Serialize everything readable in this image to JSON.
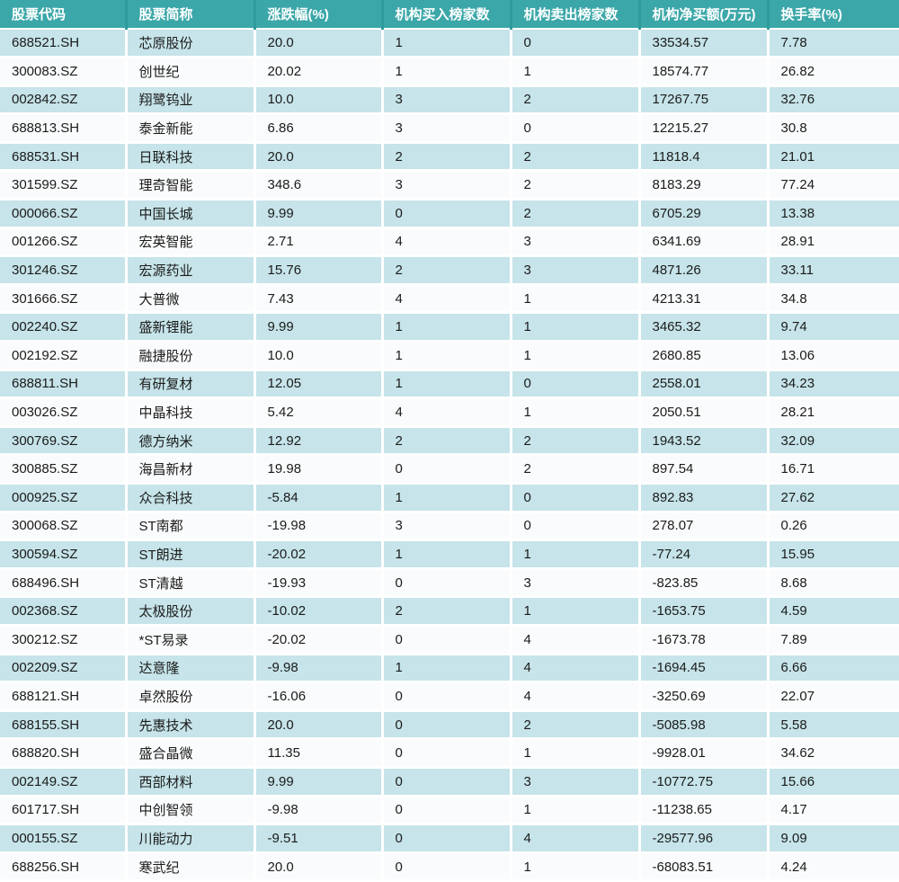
{
  "chart_data": {
    "type": "table",
    "columns": [
      "股票代码",
      "股票简称",
      "涨跌幅(%)",
      "机构买入榜家数",
      "机构卖出榜家数",
      "机构净买额(万元)",
      "换手率(%)"
    ],
    "column_keys": [
      "stock-code",
      "stock-name",
      "change-pct",
      "inst-buy-list-count",
      "inst-sell-list-count",
      "inst-net-buy-amount-wan",
      "turnover-rate-pct"
    ],
    "rows": [
      [
        "688521.SH",
        "芯原股份",
        "20.0",
        "1",
        "0",
        "33534.57",
        "7.78"
      ],
      [
        "300083.SZ",
        "创世纪",
        "20.02",
        "1",
        "1",
        "18574.77",
        "26.82"
      ],
      [
        "002842.SZ",
        "翔鹭钨业",
        "10.0",
        "3",
        "2",
        "17267.75",
        "32.76"
      ],
      [
        "688813.SH",
        "泰金新能",
        "6.86",
        "3",
        "0",
        "12215.27",
        "30.8"
      ],
      [
        "688531.SH",
        "日联科技",
        "20.0",
        "2",
        "2",
        "11818.4",
        "21.01"
      ],
      [
        "301599.SZ",
        "理奇智能",
        "348.6",
        "3",
        "2",
        "8183.29",
        "77.24"
      ],
      [
        "000066.SZ",
        "中国长城",
        "9.99",
        "0",
        "2",
        "6705.29",
        "13.38"
      ],
      [
        "001266.SZ",
        "宏英智能",
        "2.71",
        "4",
        "3",
        "6341.69",
        "28.91"
      ],
      [
        "301246.SZ",
        "宏源药业",
        "15.76",
        "2",
        "3",
        "4871.26",
        "33.11"
      ],
      [
        "301666.SZ",
        "大普微",
        "7.43",
        "4",
        "1",
        "4213.31",
        "34.8"
      ],
      [
        "002240.SZ",
        "盛新锂能",
        "9.99",
        "1",
        "1",
        "3465.32",
        "9.74"
      ],
      [
        "002192.SZ",
        "融捷股份",
        "10.0",
        "1",
        "1",
        "2680.85",
        "13.06"
      ],
      [
        "688811.SH",
        "有研复材",
        "12.05",
        "1",
        "0",
        "2558.01",
        "34.23"
      ],
      [
        "003026.SZ",
        "中晶科技",
        "5.42",
        "4",
        "1",
        "2050.51",
        "28.21"
      ],
      [
        "300769.SZ",
        "德方纳米",
        "12.92",
        "2",
        "2",
        "1943.52",
        "32.09"
      ],
      [
        "300885.SZ",
        "海昌新材",
        "19.98",
        "0",
        "2",
        "897.54",
        "16.71"
      ],
      [
        "000925.SZ",
        "众合科技",
        "-5.84",
        "1",
        "0",
        "892.83",
        "27.62"
      ],
      [
        "300068.SZ",
        "ST南都",
        "-19.98",
        "3",
        "0",
        "278.07",
        "0.26"
      ],
      [
        "300594.SZ",
        "ST朗进",
        "-20.02",
        "1",
        "1",
        "-77.24",
        "15.95"
      ],
      [
        "688496.SH",
        "ST清越",
        "-19.93",
        "0",
        "3",
        "-823.85",
        "8.68"
      ],
      [
        "002368.SZ",
        "太极股份",
        "-10.02",
        "2",
        "1",
        "-1653.75",
        "4.59"
      ],
      [
        "300212.SZ",
        "*ST易录",
        "-20.02",
        "0",
        "4",
        "-1673.78",
        "7.89"
      ],
      [
        "002209.SZ",
        "达意隆",
        "-9.98",
        "1",
        "4",
        "-1694.45",
        "6.66"
      ],
      [
        "688121.SH",
        "卓然股份",
        "-16.06",
        "0",
        "4",
        "-3250.69",
        "22.07"
      ],
      [
        "688155.SH",
        "先惠技术",
        "20.0",
        "0",
        "2",
        "-5085.98",
        "5.58"
      ],
      [
        "688820.SH",
        "盛合晶微",
        "11.35",
        "0",
        "1",
        "-9928.01",
        "34.62"
      ],
      [
        "002149.SZ",
        "西部材料",
        "9.99",
        "0",
        "3",
        "-10772.75",
        "15.66"
      ],
      [
        "601717.SH",
        "中创智领",
        "-9.98",
        "0",
        "1",
        "-11238.65",
        "4.17"
      ],
      [
        "000155.SZ",
        "川能动力",
        "-9.51",
        "0",
        "4",
        "-29577.96",
        "9.09"
      ],
      [
        "688256.SH",
        "寒武纪",
        "20.0",
        "0",
        "1",
        "-68083.51",
        "4.24"
      ]
    ]
  },
  "colors": {
    "header_bg": "#3CA7A9",
    "header_text": "#FFFFFF",
    "header_divider": "#2F9B9D",
    "row_odd_bg": "#C6E4E9",
    "row_even_bg": "#FAFBFC",
    "row_divider": "#FFFFFF",
    "cell_text": "#1B1B1B"
  }
}
